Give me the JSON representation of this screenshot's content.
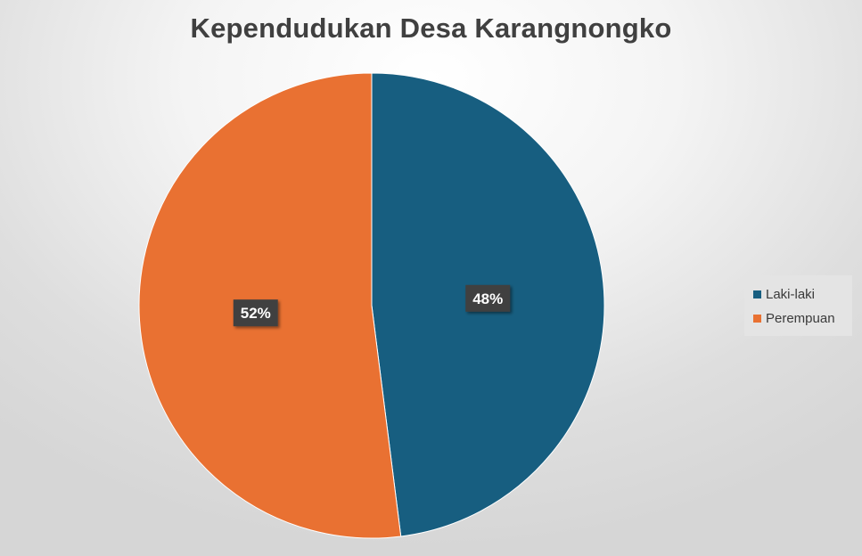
{
  "chart_data": {
    "type": "pie",
    "title": "Kependudukan Desa Karangnongko",
    "categories": [
      "Laki-laki",
      "Perempuan"
    ],
    "values": [
      48,
      52
    ],
    "data_labels": [
      "48%",
      "52%"
    ],
    "colors": [
      "#175e80",
      "#e97132"
    ],
    "legend_position": "right"
  }
}
